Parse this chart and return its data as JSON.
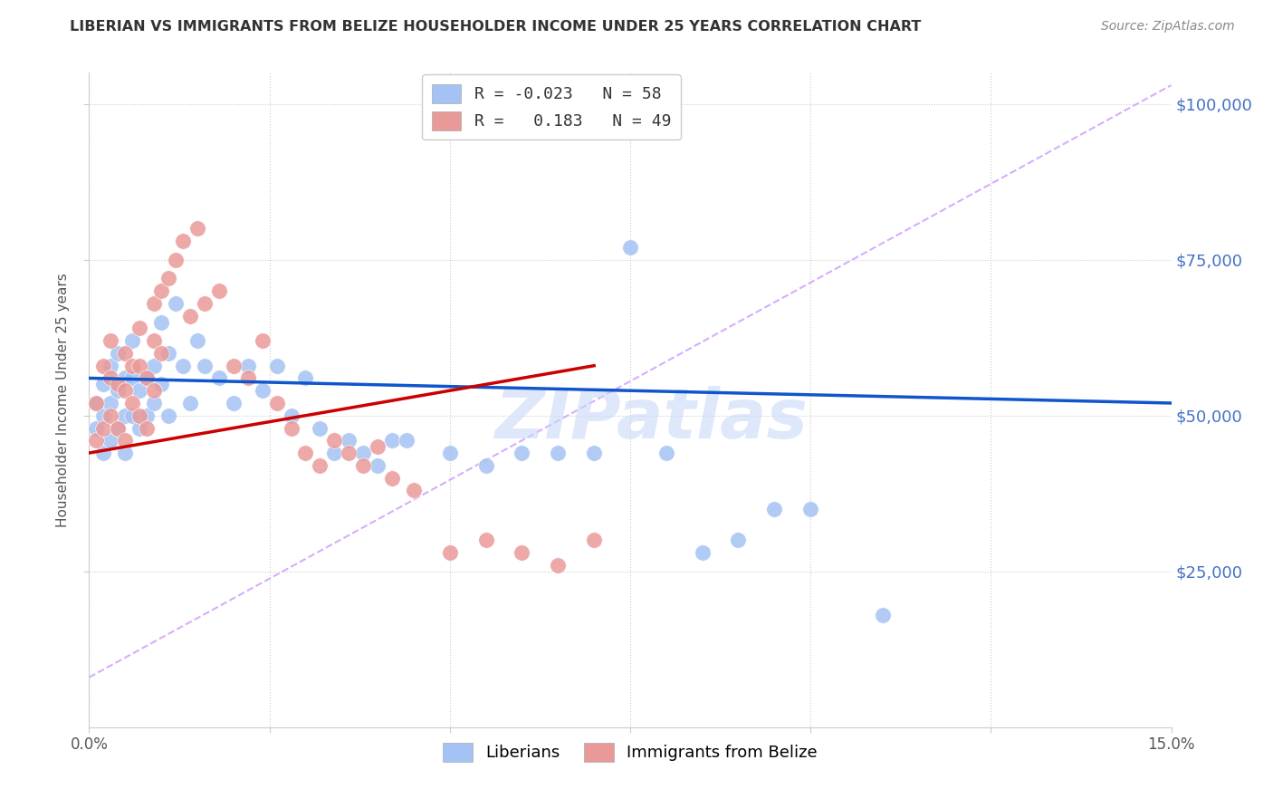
{
  "title": "LIBERIAN VS IMMIGRANTS FROM BELIZE HOUSEHOLDER INCOME UNDER 25 YEARS CORRELATION CHART",
  "source": "Source: ZipAtlas.com",
  "ylabel_label": "Householder Income Under 25 years",
  "legend_label1": "R = -0.023   N = 58",
  "legend_label2": "R =   0.183   N = 49",
  "legend_sublabel1": "Liberians",
  "legend_sublabel2": "Immigrants from Belize",
  "watermark": "ZIPatlas",
  "blue_color": "#a4c2f4",
  "pink_color": "#ea9999",
  "trend_blue": "#1155cc",
  "trend_pink": "#cc0000",
  "trend_dashed_color": "#cc99ff",
  "background": "#ffffff",
  "grid_color": "#cccccc",
  "axis_color": "#cccccc",
  "right_label_color": "#4472c4",
  "xlim": [
    0.0,
    0.15
  ],
  "ylim": [
    0,
    105000
  ],
  "blue_scatter_x": [
    0.001,
    0.001,
    0.002,
    0.002,
    0.002,
    0.003,
    0.003,
    0.003,
    0.004,
    0.004,
    0.004,
    0.005,
    0.005,
    0.005,
    0.006,
    0.006,
    0.006,
    0.007,
    0.007,
    0.008,
    0.008,
    0.009,
    0.009,
    0.01,
    0.01,
    0.011,
    0.011,
    0.012,
    0.013,
    0.014,
    0.015,
    0.016,
    0.018,
    0.02,
    0.022,
    0.024,
    0.026,
    0.028,
    0.03,
    0.032,
    0.034,
    0.036,
    0.038,
    0.04,
    0.042,
    0.044,
    0.05,
    0.055,
    0.06,
    0.065,
    0.07,
    0.075,
    0.08,
    0.085,
    0.09,
    0.095,
    0.1,
    0.11
  ],
  "blue_scatter_y": [
    52000,
    48000,
    55000,
    50000,
    44000,
    58000,
    52000,
    46000,
    60000,
    54000,
    48000,
    56000,
    50000,
    44000,
    62000,
    56000,
    50000,
    54000,
    48000,
    56000,
    50000,
    58000,
    52000,
    65000,
    55000,
    60000,
    50000,
    68000,
    58000,
    52000,
    62000,
    58000,
    56000,
    52000,
    58000,
    54000,
    58000,
    50000,
    56000,
    48000,
    44000,
    46000,
    44000,
    42000,
    46000,
    46000,
    44000,
    42000,
    44000,
    44000,
    44000,
    77000,
    44000,
    28000,
    30000,
    35000,
    35000,
    18000
  ],
  "pink_scatter_x": [
    0.001,
    0.001,
    0.002,
    0.002,
    0.003,
    0.003,
    0.003,
    0.004,
    0.004,
    0.005,
    0.005,
    0.005,
    0.006,
    0.006,
    0.007,
    0.007,
    0.007,
    0.008,
    0.008,
    0.009,
    0.009,
    0.009,
    0.01,
    0.01,
    0.011,
    0.012,
    0.013,
    0.014,
    0.015,
    0.016,
    0.018,
    0.02,
    0.022,
    0.024,
    0.026,
    0.028,
    0.03,
    0.032,
    0.034,
    0.036,
    0.038,
    0.04,
    0.042,
    0.045,
    0.05,
    0.055,
    0.06,
    0.065,
    0.07
  ],
  "pink_scatter_y": [
    52000,
    46000,
    58000,
    48000,
    62000,
    56000,
    50000,
    55000,
    48000,
    60000,
    54000,
    46000,
    58000,
    52000,
    64000,
    58000,
    50000,
    56000,
    48000,
    68000,
    62000,
    54000,
    70000,
    60000,
    72000,
    75000,
    78000,
    66000,
    80000,
    68000,
    70000,
    58000,
    56000,
    62000,
    52000,
    48000,
    44000,
    42000,
    46000,
    44000,
    42000,
    45000,
    40000,
    38000,
    28000,
    30000,
    28000,
    26000,
    30000
  ],
  "blue_trend_x": [
    0.0,
    0.15
  ],
  "blue_trend_y": [
    56000,
    52000
  ],
  "pink_trend_x": [
    0.0,
    0.07
  ],
  "pink_trend_y": [
    44000,
    58000
  ],
  "dashed_trend_x": [
    0.0,
    0.15
  ],
  "dashed_trend_y": [
    8000,
    103000
  ]
}
